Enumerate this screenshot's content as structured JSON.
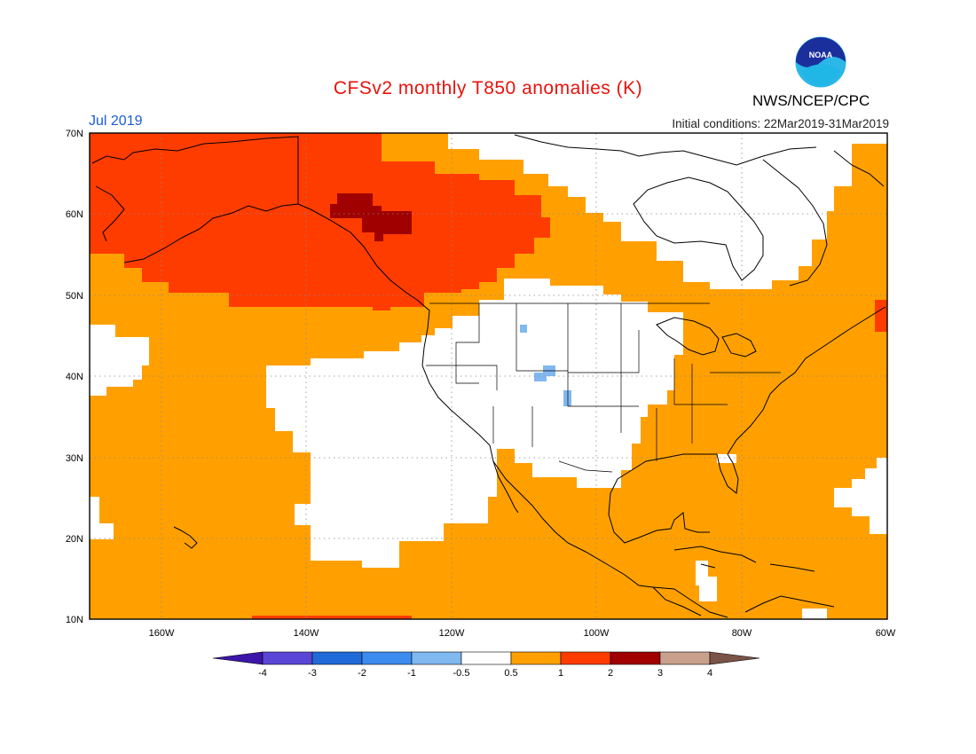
{
  "header": {
    "title": "CFSv2 monthly T850 anomalies (K)",
    "month": "Jul 2019",
    "init": "Initial conditions: 22Mar2019-31Mar2019",
    "agency": "NWS/NCEP/CPC",
    "logo_text": "NOAA"
  },
  "map": {
    "lat_labels": [
      "70N",
      "60N",
      "50N",
      "40N",
      "30N",
      "20N",
      "10N"
    ],
    "lon_labels": [
      "160W",
      "140W",
      "120W",
      "100W",
      "80W",
      "60W"
    ],
    "lat_range": [
      10,
      70
    ],
    "lon_range": [
      -170,
      -60
    ],
    "region": "North America / NE Pacific",
    "base_color": "#ffa000",
    "colors": {
      "neutral": "#ffffff",
      "orange": "#ffa000",
      "red": "#ff3c00",
      "darkred": "#a00000",
      "lightblue": "#80b8f0"
    }
  },
  "colorbar": {
    "labels": [
      "-4",
      "-3",
      "-2",
      "-1",
      "-0.5",
      "0.5",
      "1",
      "2",
      "3",
      "4"
    ],
    "colors": [
      "#3c16a8",
      "#5a46d6",
      "#1f6ad8",
      "#3c8cf0",
      "#80b8f0",
      "#ffffff",
      "#ffa000",
      "#ff3c00",
      "#a00000",
      "#c8a08c",
      "#7a5446"
    ]
  }
}
